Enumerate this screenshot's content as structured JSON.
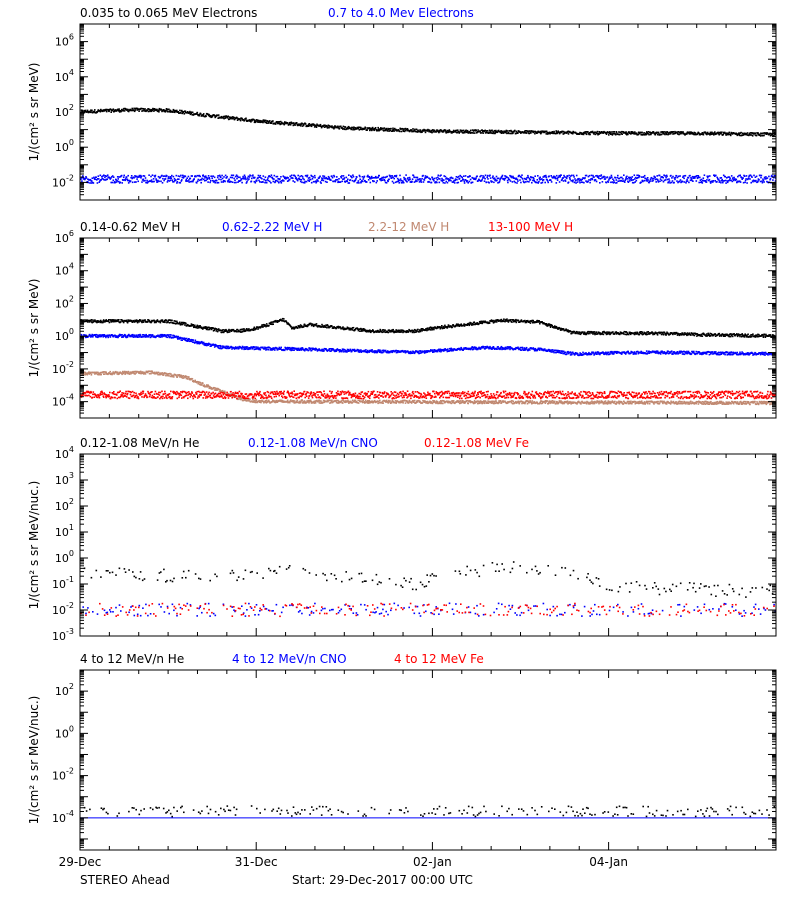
{
  "chart_data": [
    {
      "type": "scatter",
      "ylabel": "1/(cm² s sr MeV)",
      "yscale": "log",
      "ylim": [
        0.001,
        10000000
      ],
      "ytick_exponents": [
        -2,
        0,
        2,
        4,
        6
      ],
      "legend": [
        {
          "name": "0.035 to 0.065 MeV Electrons",
          "color": "#000000"
        },
        {
          "name": "0.7 to 4.0 Mev Electrons",
          "color": "#0000ff"
        }
      ],
      "series": [
        {
          "name": "0.035 to 0.065 MeV Electrons",
          "color": "#000000",
          "style": "dense",
          "x_days": [
            0,
            0.3,
            0.5,
            0.8,
            1.0,
            1.5,
            2.0,
            2.5,
            3.0,
            3.5,
            3.95
          ],
          "values": [
            100,
            130,
            120,
            50,
            30,
            12,
            8,
            7,
            6,
            6,
            5
          ]
        },
        {
          "name": "0.7 to 4.0 Mev Electrons",
          "color": "#0000ff",
          "style": "noisy",
          "x_days": [
            0,
            3.95
          ],
          "values": [
            0.015,
            0.015
          ]
        }
      ]
    },
    {
      "type": "scatter",
      "ylabel": "1/(cm² s sr MeV)",
      "yscale": "log",
      "ylim": [
        1e-05,
        1000000
      ],
      "ytick_exponents": [
        -4,
        -2,
        0,
        2,
        4,
        6
      ],
      "legend": [
        {
          "name": "0.14-0.62 MeV H",
          "color": "#000000"
        },
        {
          "name": "0.62-2.22 MeV H",
          "color": "#0000ff"
        },
        {
          "name": "2.2-12 MeV H",
          "color": "#c08870"
        },
        {
          "name": "13-100 MeV H",
          "color": "#ff0000"
        }
      ],
      "series": [
        {
          "name": "0.14-0.62 MeV H",
          "color": "#000000",
          "style": "dense",
          "x_days": [
            0,
            0.5,
            0.6,
            0.8,
            0.9,
            1.0,
            1.15,
            1.2,
            1.3,
            1.5,
            1.65,
            1.9,
            2.0,
            2.3,
            2.4,
            2.6,
            2.8,
            3.2,
            3.5,
            3.95
          ],
          "values": [
            8,
            8,
            5,
            2,
            2,
            3,
            10,
            3,
            5,
            3,
            2,
            2,
            3,
            7,
            9,
            7,
            1.5,
            1.5,
            1.2,
            1
          ]
        },
        {
          "name": "0.62-2.22 MeV H",
          "color": "#0000ff",
          "style": "dense",
          "x_days": [
            0,
            0.5,
            0.8,
            1.3,
            1.9,
            2.3,
            2.6,
            2.8,
            3.2,
            3.95
          ],
          "values": [
            1,
            1,
            0.2,
            0.15,
            0.1,
            0.2,
            0.15,
            0.08,
            0.1,
            0.08
          ]
        },
        {
          "name": "2.2-12 MeV H",
          "color": "#c08870",
          "style": "dense",
          "x_days": [
            0,
            0.4,
            0.6,
            0.7,
            0.8,
            0.9,
            1.0,
            3.95
          ],
          "values": [
            0.005,
            0.006,
            0.003,
            0.001,
            0.0004,
            0.00015,
            0.0001,
            8e-05
          ]
        },
        {
          "name": "13-100 MeV H",
          "color": "#ff0000",
          "style": "noisy",
          "x_days": [
            0,
            3.95
          ],
          "values": [
            0.00025,
            0.00025
          ]
        }
      ]
    },
    {
      "type": "scatter",
      "ylabel": "1/(cm² s sr MeV/nuc.)",
      "yscale": "log",
      "ylim": [
        0.001,
        10000
      ],
      "ytick_exponents": [
        -3,
        -2,
        -1,
        0,
        1,
        2,
        3,
        4
      ],
      "legend": [
        {
          "name": "0.12-1.08 MeV/n He",
          "color": "#000000"
        },
        {
          "name": "0.12-1.08 MeV/n CNO",
          "color": "#0000ff"
        },
        {
          "name": "0.12-1.08 MeV Fe",
          "color": "#ff0000"
        }
      ],
      "series": [
        {
          "name": "0.12-1.08 MeV/n He",
          "color": "#000000",
          "style": "sparse",
          "x_days": [
            0,
            0.5,
            0.8,
            1.2,
            1.5,
            1.9,
            2.2,
            2.5,
            2.7,
            3.0,
            3.5,
            3.95
          ],
          "values": [
            0.3,
            0.2,
            0.2,
            0.3,
            0.2,
            0.1,
            0.3,
            0.5,
            0.3,
            0.08,
            0.06,
            0.05
          ]
        },
        {
          "name": "0.12-1.08 MeV/n CNO",
          "color": "#0000ff",
          "style": "sparse",
          "x_days": [
            0,
            3.95
          ],
          "values": [
            0.01,
            0.01
          ]
        },
        {
          "name": "0.12-1.08 MeV Fe",
          "color": "#ff0000",
          "style": "sparse",
          "x_days": [
            0,
            3.95
          ],
          "values": [
            0.01,
            0.01
          ]
        }
      ]
    },
    {
      "type": "scatter",
      "ylabel": "1/(cm² s sr MeV/nuc.)",
      "yscale": "log",
      "ylim": [
        3e-06,
        1000
      ],
      "ytick_exponents": [
        -4,
        -2,
        0,
        2
      ],
      "legend": [
        {
          "name": "4 to 12 MeV/n He",
          "color": "#000000"
        },
        {
          "name": "4 to 12 MeV/n CNO",
          "color": "#0000ff"
        },
        {
          "name": "4 to 12 MeV Fe",
          "color": "#ff0000"
        }
      ],
      "series": [
        {
          "name": "4 to 12 MeV/n He",
          "color": "#000000",
          "style": "sparse",
          "x_days": [
            0,
            3.95
          ],
          "values": [
            0.0002,
            0.0002
          ]
        },
        {
          "name": "4 to 12 MeV/n CNO",
          "color": "#0000ff",
          "style": "line",
          "x_days": [
            0,
            3.95
          ],
          "values": [
            0.0001,
            0.0001
          ]
        }
      ]
    }
  ],
  "x_axis": {
    "range_days": [
      0,
      3.95
    ],
    "ticks": [
      {
        "label": "29-Dec",
        "day": 0
      },
      {
        "label": "31-Dec",
        "day": 1
      },
      {
        "label": "02-Jan",
        "day": 2
      },
      {
        "label": "04-Jan",
        "day": 3
      }
    ]
  },
  "footer": {
    "spacecraft": "STEREO Ahead",
    "start": "Start: 29-Dec-2017 00:00 UTC"
  }
}
